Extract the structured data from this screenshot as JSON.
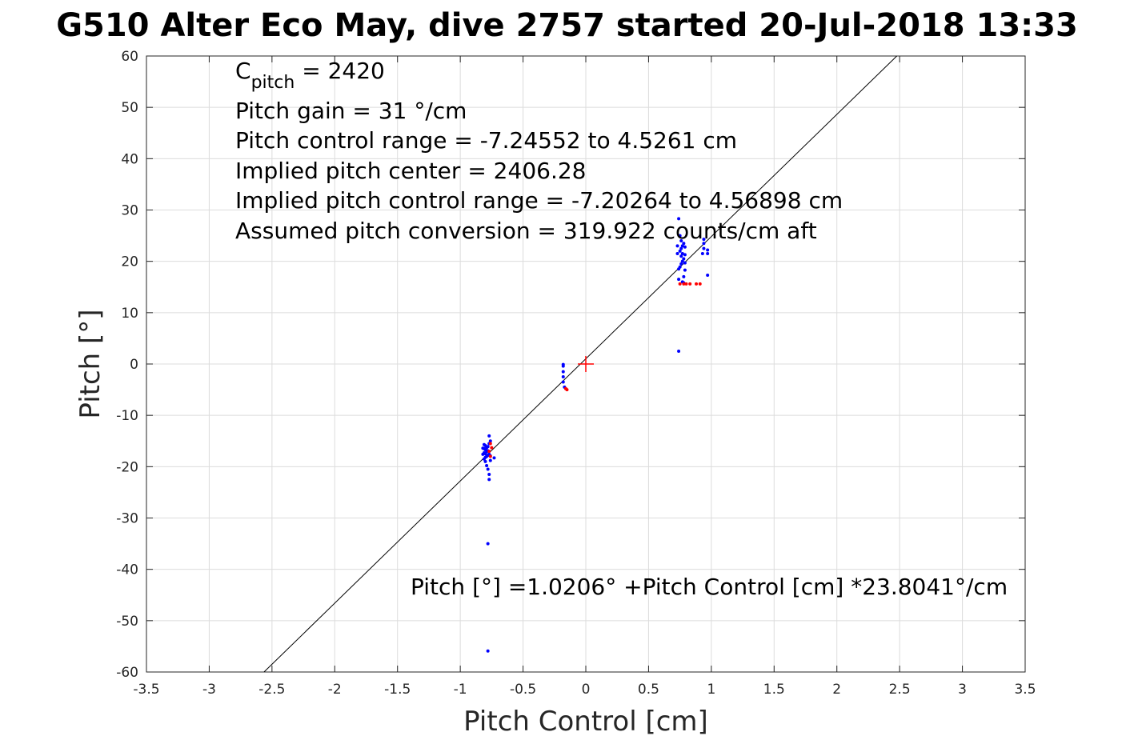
{
  "chart_data": {
    "type": "scatter",
    "title": "G510 Alter Eco May, dive 2757 started 20-Jul-2018 13:33",
    "xlabel": "Pitch Control [cm]",
    "ylabel": "Pitch [°]",
    "xlim": [
      -3.5,
      3.5
    ],
    "ylim": [
      -60,
      60
    ],
    "xticks": [
      -3.5,
      -3,
      -2.5,
      -2,
      -1.5,
      -1,
      -0.5,
      0,
      0.5,
      1,
      1.5,
      2,
      2.5,
      3,
      3.5
    ],
    "yticks": [
      -60,
      -50,
      -40,
      -30,
      -20,
      -10,
      0,
      10,
      20,
      30,
      40,
      50,
      60
    ],
    "grid": true,
    "annotations": {
      "c_pitch_symbol": "C",
      "c_pitch_subscript": "pitch",
      "c_pitch_value": " = 2420",
      "pitch_gain": "Pitch gain = 31 °/cm",
      "control_range": "Pitch control range = -7.24552 to 4.5261 cm",
      "implied_center": "Implied pitch center = 2406.28",
      "implied_range": "Implied pitch control range = -7.20264 to 4.56898 cm",
      "conversion": "Assumed pitch conversion = 319.922 counts/cm aft",
      "fit_equation": "Pitch [°] =1.0206° +Pitch Control [cm] *23.8041°/cm"
    },
    "fit_line": {
      "intercept": 1.0206,
      "slope": 23.8041,
      "color": "#000000"
    },
    "center_marker": {
      "x": 0,
      "y": 0,
      "color": "#ff0000"
    },
    "series": [
      {
        "color": "#0000ff",
        "points": [
          [
            -0.78,
            -55.9
          ],
          [
            -0.78,
            -35.0
          ],
          [
            -0.77,
            -22.5
          ],
          [
            -0.77,
            -21.5
          ],
          [
            -0.78,
            -20.5
          ],
          [
            -0.79,
            -19.8
          ],
          [
            -0.8,
            -19.0
          ],
          [
            -0.81,
            -18.5
          ],
          [
            -0.8,
            -18.2
          ],
          [
            -0.79,
            -18.0
          ],
          [
            -0.78,
            -17.8
          ],
          [
            -0.77,
            -17.6
          ],
          [
            -0.8,
            -17.5
          ],
          [
            -0.81,
            -17.3
          ],
          [
            -0.79,
            -17.1
          ],
          [
            -0.78,
            -16.9
          ],
          [
            -0.8,
            -16.7
          ],
          [
            -0.81,
            -16.5
          ],
          [
            -0.79,
            -16.3
          ],
          [
            -0.78,
            -16.1
          ],
          [
            -0.8,
            -15.9
          ],
          [
            -0.81,
            -15.7
          ],
          [
            -0.77,
            -15.5
          ],
          [
            -0.76,
            -15.0
          ],
          [
            -0.77,
            -14.0
          ],
          [
            -0.73,
            -18.3
          ],
          [
            -0.76,
            -17.9
          ],
          [
            -0.76,
            -18.8
          ],
          [
            -0.82,
            -17.6
          ],
          [
            -0.82,
            -16.4
          ],
          [
            -0.18,
            -0.1
          ],
          [
            -0.18,
            -0.4
          ],
          [
            -0.18,
            -1.5
          ],
          [
            -0.18,
            -2.5
          ],
          [
            -0.18,
            -3.5
          ],
          [
            -0.17,
            -4.5
          ],
          [
            0.74,
            2.5
          ],
          [
            0.74,
            16.5
          ],
          [
            0.74,
            18.5
          ],
          [
            0.75,
            18.9
          ],
          [
            0.76,
            19.5
          ],
          [
            0.77,
            20.0
          ],
          [
            0.78,
            20.5
          ],
          [
            0.76,
            21.0
          ],
          [
            0.77,
            21.5
          ],
          [
            0.75,
            22.0
          ],
          [
            0.76,
            22.5
          ],
          [
            0.77,
            23.0
          ],
          [
            0.78,
            23.5
          ],
          [
            0.76,
            24.0
          ],
          [
            0.75,
            25.0
          ],
          [
            0.74,
            28.3
          ],
          [
            0.79,
            22.8
          ],
          [
            0.79,
            21.3
          ],
          [
            0.79,
            19.7
          ],
          [
            0.79,
            18.3
          ],
          [
            0.78,
            17.0
          ],
          [
            0.78,
            15.8
          ],
          [
            0.73,
            23.0
          ],
          [
            0.73,
            21.5
          ],
          [
            0.93,
            21.5
          ],
          [
            0.94,
            22.5
          ],
          [
            0.94,
            23.5
          ],
          [
            0.94,
            24.3
          ],
          [
            0.97,
            21.5
          ],
          [
            0.97,
            22.2
          ],
          [
            0.97,
            17.3
          ],
          [
            0.77,
            16.0
          ]
        ]
      },
      {
        "color": "#ff0000",
        "points": [
          [
            -0.76,
            -15.5
          ],
          [
            -0.75,
            -16.3
          ],
          [
            -0.77,
            -17.0
          ],
          [
            -0.76,
            -18.0
          ],
          [
            -0.16,
            -4.8
          ],
          [
            -0.15,
            -5.0
          ],
          [
            0.75,
            15.6
          ],
          [
            0.78,
            15.6
          ],
          [
            0.8,
            15.6
          ],
          [
            0.83,
            15.6
          ],
          [
            0.88,
            15.6
          ],
          [
            0.91,
            15.6
          ]
        ]
      }
    ]
  }
}
